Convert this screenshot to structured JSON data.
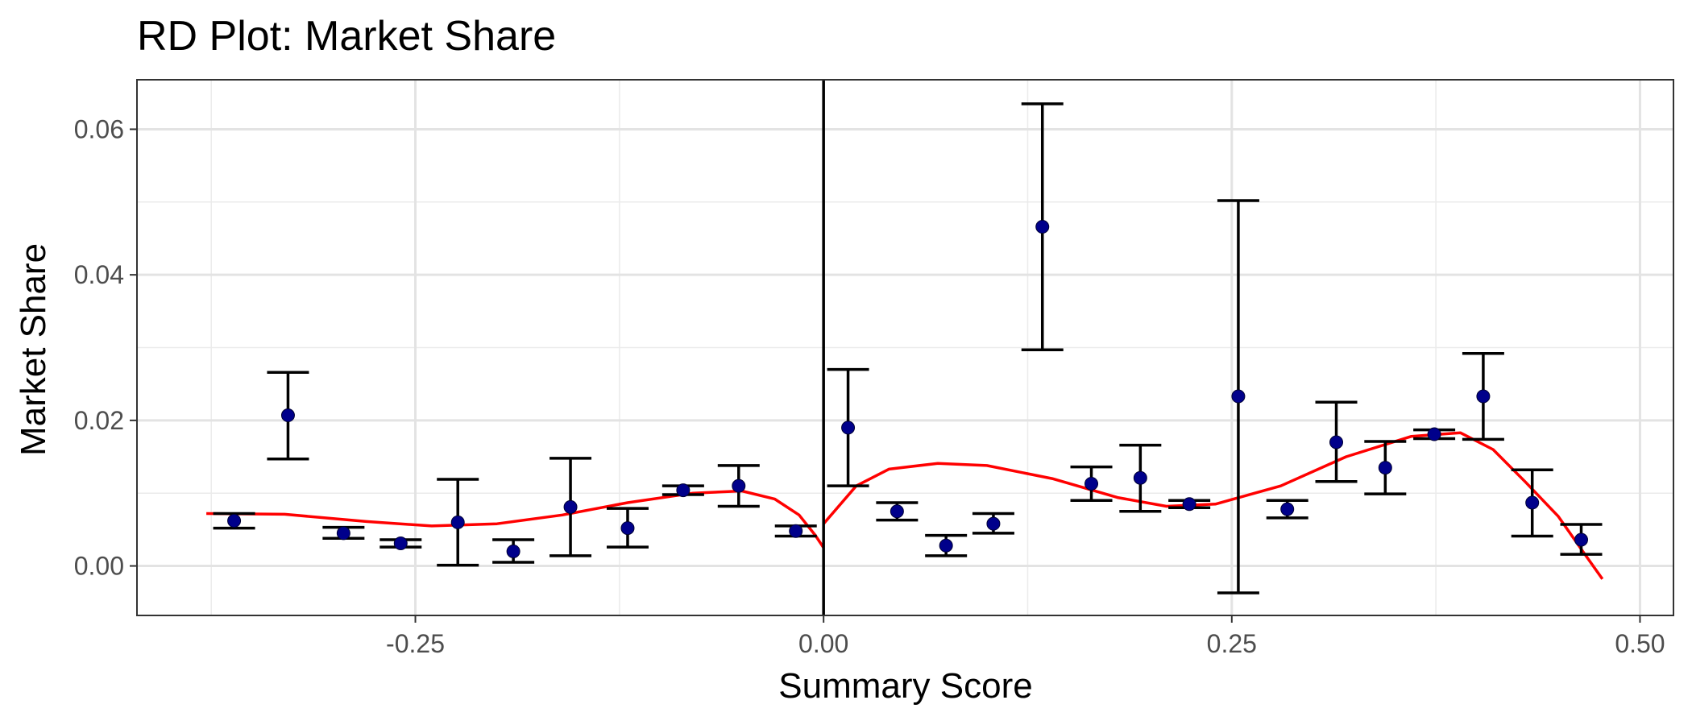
{
  "chart_data": {
    "type": "scatter",
    "title": "RD Plot: Market Share",
    "xlabel": "Summary Score",
    "ylabel": "Market Share",
    "xlim": [
      -0.4205,
      0.5205
    ],
    "ylim": [
      -0.0068,
      0.0668
    ],
    "x_ticks": [
      -0.25,
      0.0,
      0.25,
      0.5
    ],
    "x_tick_labels": [
      "-0.25",
      "0.00",
      "0.25",
      "0.50"
    ],
    "y_ticks": [
      0.0,
      0.02,
      0.04,
      0.06
    ],
    "y_tick_labels": [
      "0.00",
      "0.02",
      "0.04",
      "0.06"
    ],
    "cutoff_x": 0.0,
    "grid": true,
    "point_color": "#00008B",
    "errorbar_color": "#000000",
    "fit_color": "#FF0000",
    "points": [
      {
        "x": -0.361,
        "y": 0.0062,
        "lo": 0.0052,
        "hi": 0.0072
      },
      {
        "x": -0.328,
        "y": 0.0207,
        "lo": 0.0147,
        "hi": 0.0266
      },
      {
        "x": -0.294,
        "y": 0.0045,
        "lo": 0.0038,
        "hi": 0.0053
      },
      {
        "x": -0.259,
        "y": 0.0031,
        "lo": 0.0026,
        "hi": 0.0036
      },
      {
        "x": -0.224,
        "y": 0.006,
        "lo": 0.0001,
        "hi": 0.0119
      },
      {
        "x": -0.19,
        "y": 0.002,
        "lo": 0.0005,
        "hi": 0.0036
      },
      {
        "x": -0.155,
        "y": 0.0081,
        "lo": 0.0014,
        "hi": 0.0148
      },
      {
        "x": -0.12,
        "y": 0.0052,
        "lo": 0.0026,
        "hi": 0.0079
      },
      {
        "x": -0.086,
        "y": 0.0104,
        "lo": 0.0098,
        "hi": 0.011
      },
      {
        "x": -0.052,
        "y": 0.011,
        "lo": 0.0082,
        "hi": 0.0138
      },
      {
        "x": -0.017,
        "y": 0.0048,
        "lo": 0.0041,
        "hi": 0.0055
      },
      {
        "x": 0.015,
        "y": 0.019,
        "lo": 0.011,
        "hi": 0.027
      },
      {
        "x": 0.045,
        "y": 0.0075,
        "lo": 0.0063,
        "hi": 0.0087
      },
      {
        "x": 0.075,
        "y": 0.0028,
        "lo": 0.0014,
        "hi": 0.0042
      },
      {
        "x": 0.104,
        "y": 0.0058,
        "lo": 0.0045,
        "hi": 0.0072
      },
      {
        "x": 0.134,
        "y": 0.0466,
        "lo": 0.0297,
        "hi": 0.0635
      },
      {
        "x": 0.164,
        "y": 0.0113,
        "lo": 0.009,
        "hi": 0.0136
      },
      {
        "x": 0.194,
        "y": 0.0121,
        "lo": 0.0075,
        "hi": 0.0166
      },
      {
        "x": 0.224,
        "y": 0.0085,
        "lo": 0.008,
        "hi": 0.009
      },
      {
        "x": 0.254,
        "y": 0.0233,
        "lo": -0.0037,
        "hi": 0.0502
      },
      {
        "x": 0.284,
        "y": 0.0078,
        "lo": 0.0066,
        "hi": 0.009
      },
      {
        "x": 0.314,
        "y": 0.017,
        "lo": 0.0116,
        "hi": 0.0225
      },
      {
        "x": 0.344,
        "y": 0.0135,
        "lo": 0.0099,
        "hi": 0.0171
      },
      {
        "x": 0.374,
        "y": 0.0181,
        "lo": 0.0175,
        "hi": 0.0187
      },
      {
        "x": 0.404,
        "y": 0.0233,
        "lo": 0.0174,
        "hi": 0.0292
      },
      {
        "x": 0.434,
        "y": 0.0087,
        "lo": 0.0041,
        "hi": 0.0132
      },
      {
        "x": 0.464,
        "y": 0.0036,
        "lo": 0.0016,
        "hi": 0.0057
      }
    ],
    "fit_left": [
      {
        "x": -0.378,
        "y": 0.0072
      },
      {
        "x": -0.33,
        "y": 0.0071
      },
      {
        "x": -0.28,
        "y": 0.0061
      },
      {
        "x": -0.24,
        "y": 0.0055
      },
      {
        "x": -0.2,
        "y": 0.0058
      },
      {
        "x": -0.16,
        "y": 0.007
      },
      {
        "x": -0.12,
        "y": 0.0087
      },
      {
        "x": -0.08,
        "y": 0.01
      },
      {
        "x": -0.05,
        "y": 0.0103
      },
      {
        "x": -0.03,
        "y": 0.0092
      },
      {
        "x": -0.015,
        "y": 0.007
      },
      {
        "x": -0.005,
        "y": 0.0042
      },
      {
        "x": 0.0,
        "y": 0.0025
      }
    ],
    "fit_right": [
      {
        "x": 0.0,
        "y": 0.0058
      },
      {
        "x": 0.02,
        "y": 0.011
      },
      {
        "x": 0.04,
        "y": 0.0133
      },
      {
        "x": 0.07,
        "y": 0.0141
      },
      {
        "x": 0.1,
        "y": 0.0138
      },
      {
        "x": 0.14,
        "y": 0.012
      },
      {
        "x": 0.18,
        "y": 0.0094
      },
      {
        "x": 0.21,
        "y": 0.0082
      },
      {
        "x": 0.24,
        "y": 0.0085
      },
      {
        "x": 0.28,
        "y": 0.011
      },
      {
        "x": 0.32,
        "y": 0.015
      },
      {
        "x": 0.36,
        "y": 0.0178
      },
      {
        "x": 0.39,
        "y": 0.0183
      },
      {
        "x": 0.41,
        "y": 0.016
      },
      {
        "x": 0.43,
        "y": 0.0115
      },
      {
        "x": 0.45,
        "y": 0.0068
      },
      {
        "x": 0.465,
        "y": 0.002
      },
      {
        "x": 0.477,
        "y": -0.0018
      }
    ]
  }
}
